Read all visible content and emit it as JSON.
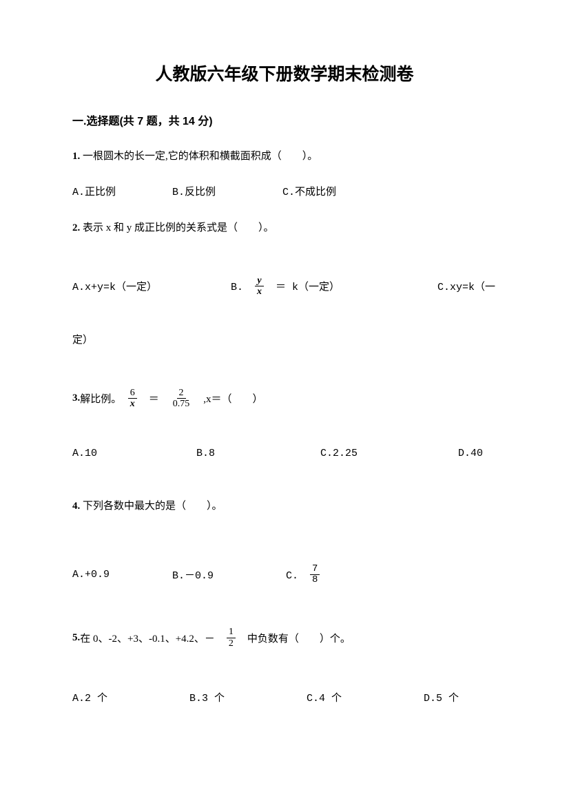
{
  "title": "人教版六年级下册数学期末检测卷",
  "section1": {
    "header": "一.选择题(共 7 题，共 14 分)",
    "q1": {
      "text_prefix": "1.",
      "text": "一根圆木的长一定,它的体积和横截面积成（　　）。",
      "optA": "A.正比例",
      "optB": "B.反比例",
      "optC": "C.不成比例"
    },
    "q2": {
      "text_prefix": "2.",
      "text": "表示 x 和 y 成正比例的关系式是（　　）。",
      "optA": "A.x+y=k（一定）",
      "optB_prefix": "B.　",
      "optB_frac_num": "y",
      "optB_frac_den": "x",
      "optB_suffix": "　＝ k（一定）",
      "optC": "C.xy=k（一",
      "optC_cont": "定）"
    },
    "q3": {
      "text_prefix": "3.",
      "text_start": "解比例。　",
      "frac1_num": "6",
      "frac1_den": "x",
      "eq": "　＝　",
      "frac2_num": "2",
      "frac2_den": "0.75",
      "text_end": "　,x＝（　　）",
      "optA": "A.10",
      "optB": "B.8",
      "optC": "C.2.25",
      "optD": "D.40"
    },
    "q4": {
      "text_prefix": "4.",
      "text": "下列各数中最大的是（　　）。",
      "optA": "A.+0.9",
      "optB": "B.－0.9",
      "optC_prefix": "C.　",
      "optC_frac_num": "7",
      "optC_frac_den": "8"
    },
    "q5": {
      "text_prefix": "5.",
      "text_start": "在 0、-2、+3、-0.1、+4.2、－　",
      "frac_num": "1",
      "frac_den": "2",
      "text_end": "　中负数有（　　）个。",
      "optA": "A.2 个",
      "optB": "B.3 个",
      "optC": "C.4 个",
      "optD": "D.5 个"
    }
  }
}
